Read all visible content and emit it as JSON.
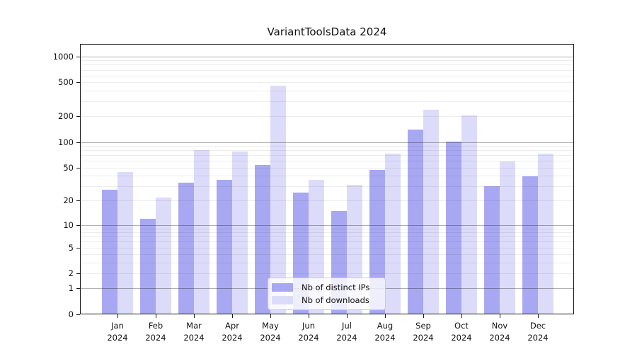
{
  "figure": {
    "title": "VariantToolsData 2024"
  },
  "legend": {
    "items": [
      {
        "label": "Nb of distinct IPs",
        "color": "#a8a8f2"
      },
      {
        "label": "Nb of downloads",
        "color": "#dcdcfa"
      }
    ]
  },
  "chart_data": {
    "type": "bar",
    "title": "VariantToolsData 2024",
    "xlabel": "",
    "ylabel": "",
    "yscale": "log1p",
    "ylim": [
      0,
      1400
    ],
    "yticks": [
      0,
      1,
      2,
      5,
      10,
      20,
      50,
      100,
      200,
      500,
      1000
    ],
    "major_grid_values": [
      1,
      10,
      100,
      1000
    ],
    "minor_grid_values": [
      2,
      3,
      4,
      5,
      6,
      7,
      8,
      9,
      20,
      30,
      40,
      50,
      60,
      70,
      80,
      90,
      200,
      300,
      400,
      500,
      600,
      700,
      800,
      900
    ],
    "grid": "horizontal gridlines drawn over bars; majors darker, minors faint",
    "legend_position": "lower center inside plot",
    "categories": [
      "Jan 2024",
      "Feb 2024",
      "Mar 2024",
      "Apr 2024",
      "May 2024",
      "Jun 2024",
      "Jul 2024",
      "Aug 2024",
      "Sep 2024",
      "Oct 2024",
      "Nov 2024",
      "Dec 2024"
    ],
    "series": [
      {
        "name": "Nb of distinct IPs",
        "color": "#a8a8f2",
        "values": [
          27,
          12,
          33,
          36,
          54,
          25,
          15,
          47,
          140,
          102,
          30,
          39
        ]
      },
      {
        "name": "Nb of downloads",
        "color": "#dcdcfa",
        "values": [
          44,
          22,
          80,
          78,
          460,
          36,
          31,
          73,
          240,
          205,
          59,
          73
        ]
      }
    ]
  }
}
